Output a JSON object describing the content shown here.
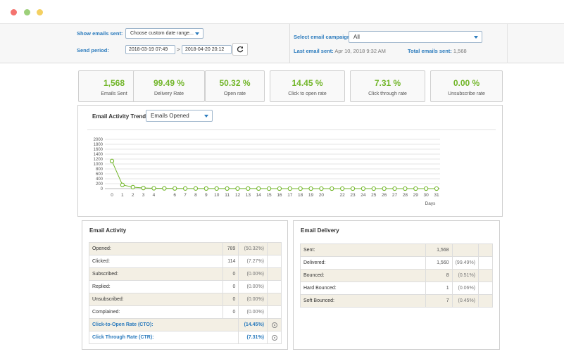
{
  "filters": {
    "show_emails_label": "Show emails sent:",
    "date_range_value": "Choose custom date range...",
    "send_period_label": "Send period:",
    "date_from": "2018-03-19 07:49",
    "date_sep": ">",
    "date_to": "2018-04-20 20:12",
    "campaign_label": "Select email campaign:",
    "campaign_value": "All",
    "last_sent_label": "Last email sent:",
    "last_sent_value": "Apr 10, 2018 9:32 AM",
    "total_sent_label": "Total emails sent:",
    "total_sent_value": "1,568"
  },
  "stats": [
    {
      "value": "1,568",
      "label": "Emails Sent"
    },
    {
      "value": "99.49 %",
      "label": "Delivery Rate"
    },
    {
      "value": "50.32 %",
      "label": "Open rate"
    },
    {
      "value": "14.45 %",
      "label": "Click to open rate"
    },
    {
      "value": "7.31 %",
      "label": "Click through rate"
    },
    {
      "value": "0.00 %",
      "label": "Unsubscribe rate"
    }
  ],
  "trend": {
    "label": "Email Activity Trend:",
    "metric": "Emails Opened"
  },
  "chart_data": {
    "type": "line",
    "xlabel": "Days",
    "ylabel": "",
    "ylim": [
      0,
      2000
    ],
    "yticks": [
      0,
      200,
      400,
      600,
      800,
      1000,
      1200,
      1400,
      1600,
      1800,
      2000
    ],
    "x": [
      0,
      1,
      2,
      3,
      4,
      5,
      6,
      7,
      8,
      9,
      10,
      11,
      12,
      13,
      14,
      15,
      16,
      17,
      18,
      19,
      20,
      21,
      22,
      23,
      24,
      25,
      26,
      27,
      28,
      29,
      30,
      31
    ],
    "xticks": [
      0,
      1,
      2,
      3,
      4,
      6,
      7,
      8,
      9,
      10,
      11,
      12,
      13,
      14,
      15,
      16,
      17,
      18,
      19,
      20,
      22,
      23,
      24,
      25,
      26,
      27,
      28,
      29,
      30,
      31
    ],
    "series": [
      {
        "values": [
          1120,
          150,
          60,
          25,
          15,
          10,
          8,
          5,
          5,
          3,
          3,
          2,
          2,
          2,
          2,
          1,
          1,
          1,
          1,
          1,
          1,
          1,
          1,
          1,
          1,
          1,
          1,
          1,
          1,
          1,
          1,
          1
        ],
        "color": "#72b62a"
      }
    ],
    "grid": true
  },
  "activity": {
    "title": "Email Activity",
    "rows": [
      {
        "name": "Opened:",
        "count": "789",
        "pct": "(50.32%)"
      },
      {
        "name": "Clicked:",
        "count": "114",
        "pct": "(7.27%)"
      },
      {
        "name": "Subscribed:",
        "count": "0",
        "pct": "(0.00%)"
      },
      {
        "name": "Replied:",
        "count": "0",
        "pct": "(0.00%)"
      },
      {
        "name": "Unsubscribed:",
        "count": "0",
        "pct": "(0.00%)"
      },
      {
        "name": "Complained:",
        "count": "0",
        "pct": "(0.00%)"
      }
    ],
    "rates": [
      {
        "name": "Click-to-Open Rate (CTO):",
        "pct": "(14.45%)",
        "icon": "info-icon"
      },
      {
        "name": "Click Through Rate (CTR):",
        "pct": "(7.31%)",
        "icon": "info-icon"
      }
    ]
  },
  "delivery": {
    "title": "Email Delivery",
    "rows": [
      {
        "name": "Sent:",
        "count": "1,568",
        "pct": ""
      },
      {
        "name": "Delivered:",
        "count": "1,560",
        "pct": "(99.49%)"
      },
      {
        "name": "Bounced:",
        "count": "8",
        "pct": "(0.51%)"
      },
      {
        "name": "Hard Bounced:",
        "count": "1",
        "pct": "(0.06%)"
      },
      {
        "name": "Soft Bounced:",
        "count": "7",
        "pct": "(0.45%)"
      }
    ]
  }
}
